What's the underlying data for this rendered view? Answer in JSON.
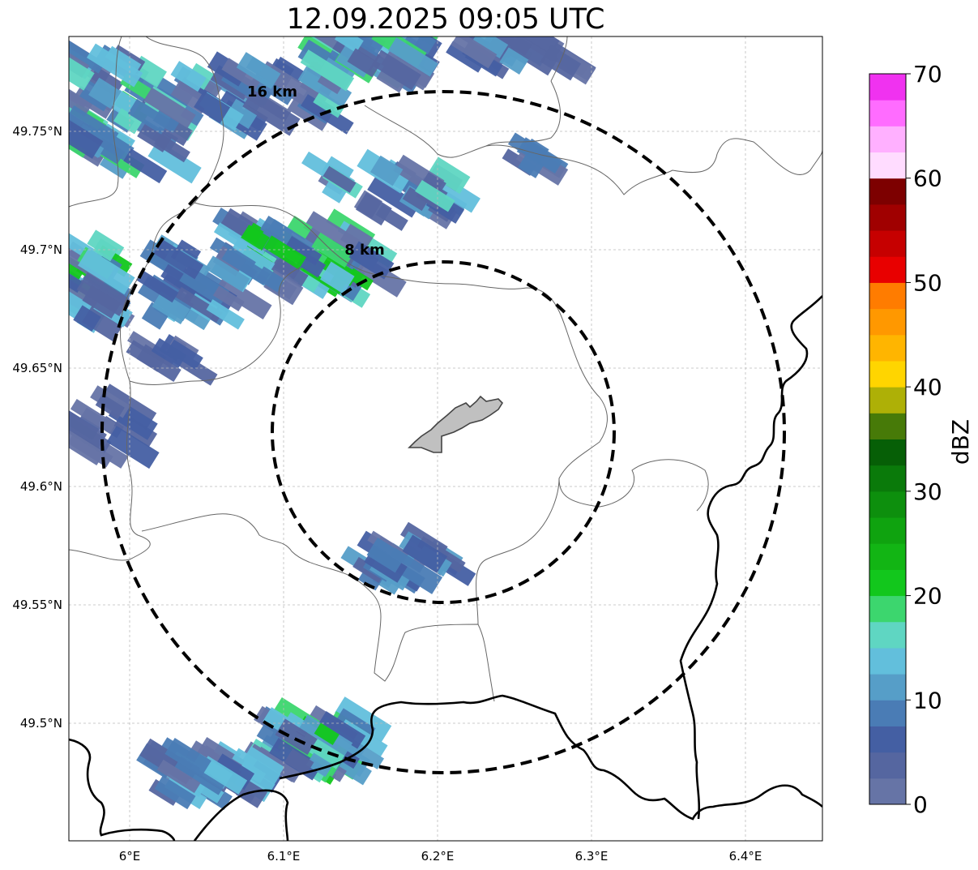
{
  "title": "12.09.2025 09:05 UTC",
  "map": {
    "lon_range": [
      5.96,
      6.45
    ],
    "lat_range": [
      49.45,
      49.79
    ],
    "lon_ticks": [
      {
        "value": 6.0,
        "label": "6°E"
      },
      {
        "value": 6.1,
        "label": "6.1°E"
      },
      {
        "value": 6.2,
        "label": "6.2°E"
      },
      {
        "value": 6.3,
        "label": "6.3°E"
      },
      {
        "value": 6.4,
        "label": "6.4°E"
      }
    ],
    "lat_ticks": [
      {
        "value": 49.75,
        "label": "49.75°N"
      },
      {
        "value": 49.7,
        "label": "49.7°N"
      },
      {
        "value": 49.65,
        "label": "49.65°N"
      },
      {
        "value": 49.6,
        "label": "49.6°N"
      },
      {
        "value": 49.55,
        "label": "49.55°N"
      },
      {
        "value": 49.5,
        "label": "49.5°N"
      }
    ],
    "grid": true,
    "range_rings": [
      {
        "label": "8 km",
        "radius_km": 8
      },
      {
        "label": "16 km",
        "radius_km": 16
      }
    ],
    "radar_center": {
      "lon": 6.2,
      "lat": 49.623
    }
  },
  "colorbar": {
    "label": "dBZ",
    "ticks": [
      "0",
      "10",
      "20",
      "30",
      "40",
      "50",
      "60",
      "70"
    ],
    "colors": [
      "#6674a6",
      "#5566a0",
      "#445fa3",
      "#4a7cb5",
      "#569ec8",
      "#62bfdc",
      "#5fd6c2",
      "#3cd66e",
      "#12c71c",
      "#12b514",
      "#0fa30f",
      "#0d8f0d",
      "#0a7a0a",
      "#065f06",
      "#477a08",
      "#aeb006",
      "#ffd500",
      "#ffb500",
      "#ff9800",
      "#ff7c00",
      "#e80000",
      "#c60000",
      "#a00000",
      "#7d0000",
      "#ffdcff",
      "#ffb0ff",
      "#ff6cff",
      "#f032f0"
    ]
  }
}
